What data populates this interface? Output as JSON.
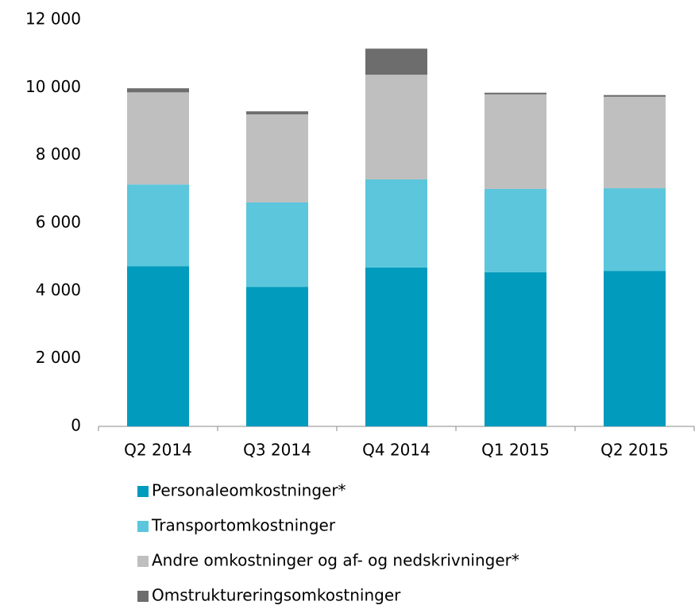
{
  "chart_data": {
    "type": "stacked_bar",
    "categories": [
      "Q2 2014",
      "Q3 2014",
      "Q4 2014",
      "Q1 2015",
      "Q2 2015"
    ],
    "series": [
      {
        "name": "Personaleomkostninger*",
        "color": "#009bbd",
        "values": [
          4730,
          4120,
          4690,
          4550,
          4590
        ]
      },
      {
        "name": "Transportomkostninger",
        "color": "#5bc6dc",
        "values": [
          2410,
          2490,
          2600,
          2460,
          2440
        ]
      },
      {
        "name": "Andre omkostninger og af- og nedskrivninger*",
        "color": "#bfbfbf",
        "values": [
          2720,
          2600,
          3090,
          2790,
          2700
        ]
      },
      {
        "name": "Omstruktureringsomkostninger",
        "color": "#6d6d6d",
        "values": [
          120,
          90,
          770,
          50,
          50
        ]
      }
    ],
    "ylim": [
      0,
      12000
    ],
    "yticks": [
      0,
      {
        "value": 2000,
        "label": "2 000"
      },
      {
        "value": 4000,
        "label": "4 000"
      },
      {
        "value": 6000,
        "label": "6 000"
      },
      {
        "value": 8000,
        "label": "8 000"
      },
      {
        "value": 10000,
        "label": "10 000"
      },
      {
        "value": 12000,
        "label": "12 000"
      }
    ],
    "grid": false
  }
}
